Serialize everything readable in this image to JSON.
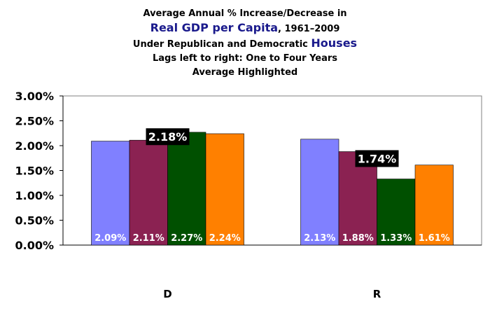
{
  "chart_data": {
    "type": "bar",
    "title": {
      "line1": "Average Annual % Increase/Decrease in",
      "line2_highlight": "Real GDP per Capita",
      "line2_rest": ", 1961–2009",
      "line3_pre": "Under Republican and Democratic ",
      "line3_highlight": "Houses",
      "line4": "Lags left to right: One to Four Years",
      "line5": "Average Highlighted"
    },
    "categories": [
      "D",
      "R"
    ],
    "series": [
      {
        "color": "#8080ff",
        "values": [
          2.09,
          2.13
        ],
        "labels": [
          "2.09%",
          "2.13%"
        ]
      },
      {
        "color": "#8b2252",
        "values": [
          2.11,
          1.88
        ],
        "labels": [
          "2.11%",
          "1.88%"
        ]
      },
      {
        "color": "#005000",
        "values": [
          2.27,
          1.33
        ],
        "labels": [
          "2.27%",
          "1.33%"
        ]
      },
      {
        "color": "#ff8000",
        "values": [
          2.24,
          1.61
        ],
        "labels": [
          "2.24%",
          "1.61%"
        ]
      }
    ],
    "averages": [
      {
        "value": 2.18,
        "label": "2.18%"
      },
      {
        "value": 1.74,
        "label": "1.74%"
      }
    ],
    "ylim": [
      0,
      3.0
    ],
    "yticks": [
      {
        "value": 0.0,
        "label": "0.00%"
      },
      {
        "value": 0.5,
        "label": "0.50%"
      },
      {
        "value": 1.0,
        "label": "1.00%"
      },
      {
        "value": 1.5,
        "label": "1.50%"
      },
      {
        "value": 2.0,
        "label": "2.00%"
      },
      {
        "value": 2.5,
        "label": "2.50%"
      },
      {
        "value": 3.0,
        "label": "3.00%"
      }
    ],
    "grid": false,
    "legend": "none"
  }
}
